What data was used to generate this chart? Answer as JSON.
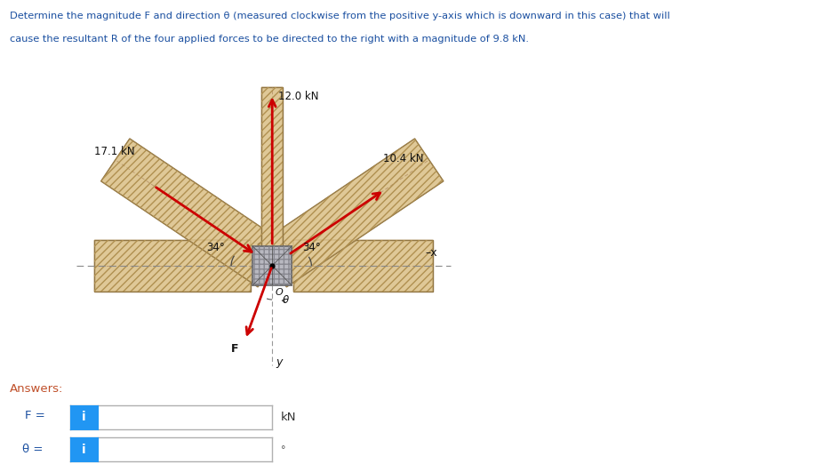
{
  "title_line1": "Determine the magnitude F and direction θ (measured clockwise from the positive y-axis which is downward in this case) that will",
  "title_line2": "cause the resultant R of the four applied forces to be directed to the right with a magnitude of 9.8 kN.",
  "force_12": "12.0 kN",
  "force_171": "17.1 kN",
  "force_104": "10.4 kN",
  "angle_label": "34°",
  "answers_label": "Answers:",
  "F_label": "F =",
  "theta_label": "θ =",
  "kN_label": "kN",
  "degree_label": "°",
  "i_label": "i",
  "O_label": "O",
  "F_arrow_label": "F",
  "y_label": "y",
  "x_label": "–x",
  "theta_symbol": "θ",
  "beam_color": "#dfc897",
  "beam_edge": "#8B7040",
  "beam_dash_color": "#b8956a",
  "plate_color": "#b8b8c0",
  "plate_edge": "#606060",
  "arrow_color": "#cc0000",
  "bg_color": "#ffffff",
  "text_color_blue": "#1a4fa0",
  "text_color_dark": "#333333",
  "text_color_answers": "#c0502a",
  "box_bg": "#ffffff",
  "box_border": "#b0b0b0",
  "info_blue": "#2196F3",
  "dashed_color": "#888888",
  "center_line_color": "#999999"
}
